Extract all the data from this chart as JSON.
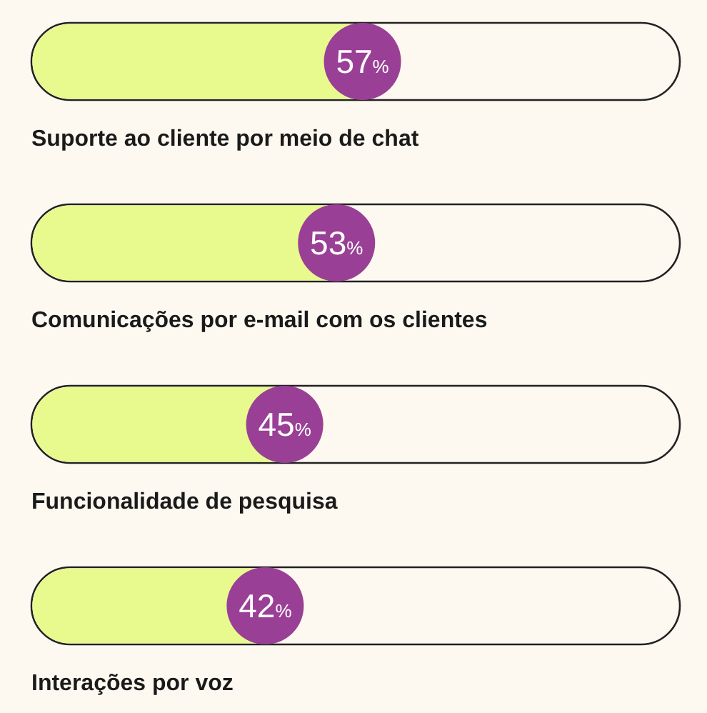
{
  "chart_data": {
    "type": "bar",
    "orientation": "horizontal",
    "categories": [
      "Suporte ao cliente por meio de chat",
      "Comunicações por e-mail com os clientes",
      "Funcionalidade de pesquisa",
      "Interações por voz"
    ],
    "values": [
      57,
      53,
      45,
      42
    ],
    "value_labels": [
      "57%",
      "53%",
      "45%",
      "42%"
    ],
    "color": "#e8f98e",
    "xlim": [
      0,
      100
    ]
  }
}
